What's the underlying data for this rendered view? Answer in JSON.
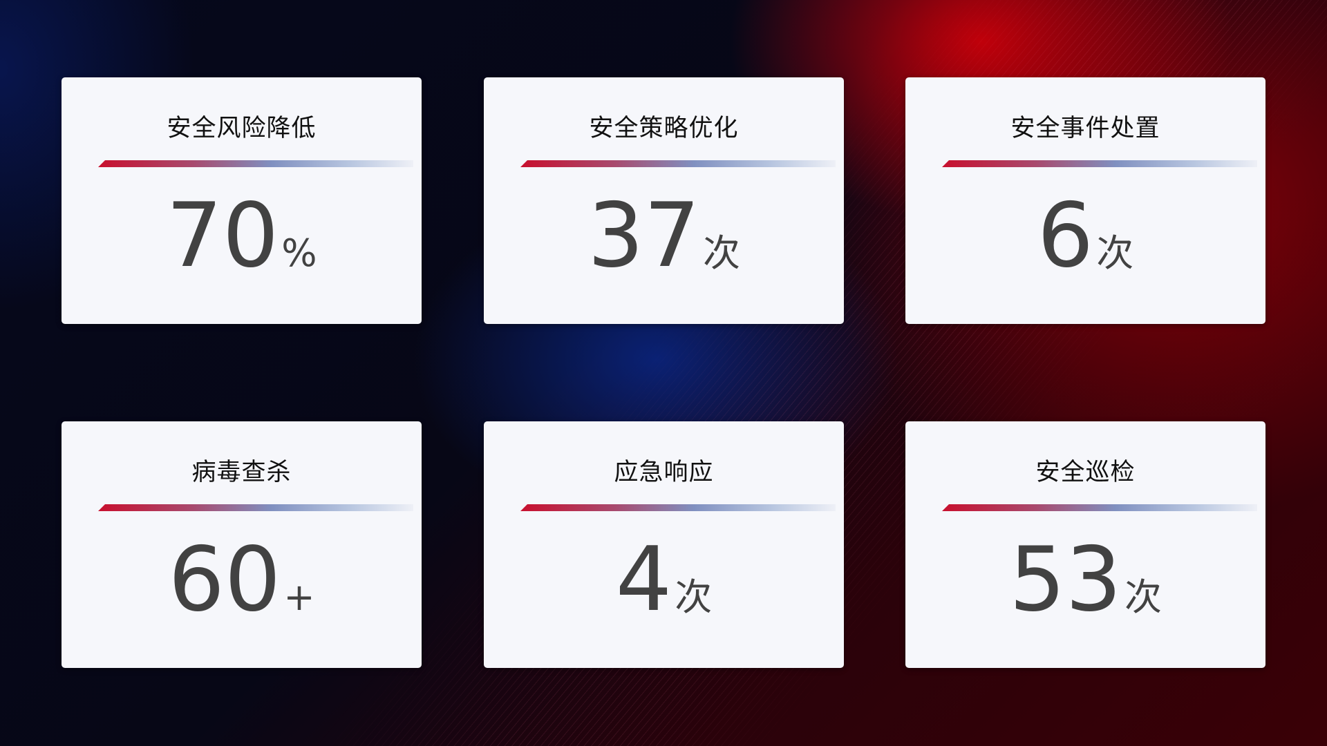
{
  "cards": [
    {
      "title": "安全风险降低",
      "value": "70",
      "unit": "%"
    },
    {
      "title": "安全策略优化",
      "value": "37",
      "unit": "次"
    },
    {
      "title": "安全事件处置",
      "value": "6",
      "unit": "次"
    },
    {
      "title": "病毒查杀",
      "value": "60",
      "unit": "+"
    },
    {
      "title": "应急响应",
      "value": "4",
      "unit": "次"
    },
    {
      "title": "安全巡检",
      "value": "53",
      "unit": "次"
    }
  ],
  "colors": {
    "accent_red": "#c8102e",
    "accent_blue": "#8090c0",
    "card_bg": "#f6f7fb",
    "value_text": "#424242"
  }
}
